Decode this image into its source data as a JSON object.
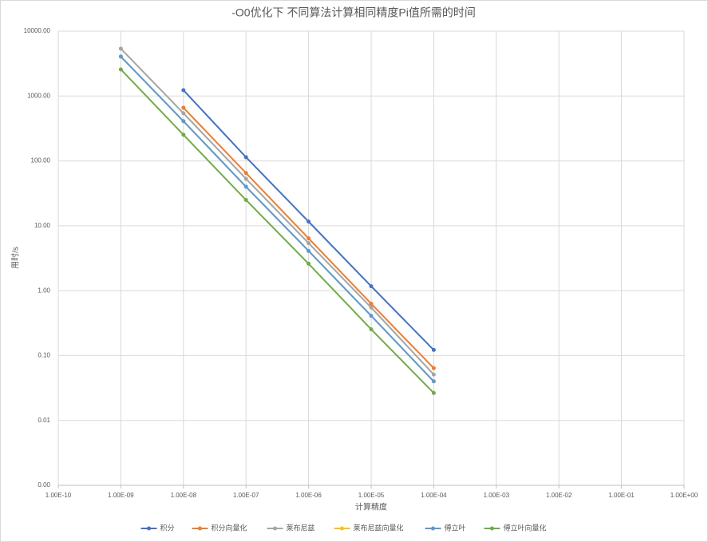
{
  "chart_data": {
    "type": "line",
    "title": "-O0优化下 不同算法计算相同精度Pi值所需的时间",
    "x_label": "计算精度",
    "y_label": "用时/s",
    "x_log": true,
    "y_log": true,
    "grid": true,
    "legend": "bottom",
    "x": [
      1e-09,
      1e-08,
      1e-07,
      1e-06,
      1e-05,
      0.0001
    ],
    "xlim": [
      1e-10,
      1
    ],
    "xticks": [
      {
        "value": 1e-10,
        "label": "1.00E-10"
      },
      {
        "value": 1e-09,
        "label": "1.00E-09"
      },
      {
        "value": 1e-08,
        "label": "1.00E-08"
      },
      {
        "value": 1e-07,
        "label": "1.00E-07"
      },
      {
        "value": 1e-06,
        "label": "1.00E-06"
      },
      {
        "value": 1e-05,
        "label": "1.00E-05"
      },
      {
        "value": 0.0001,
        "label": "1.00E-04"
      },
      {
        "value": 0.001,
        "label": "1.00E-03"
      },
      {
        "value": 0.01,
        "label": "1.00E-02"
      },
      {
        "value": 0.1,
        "label": "1.00E-01"
      },
      {
        "value": 1,
        "label": "1.00E+00"
      }
    ],
    "ylim": [
      0.001,
      10000
    ],
    "yticks": [
      {
        "value": 0.001,
        "label": "0.00"
      },
      {
        "value": 0.01,
        "label": "0.01"
      },
      {
        "value": 0.1,
        "label": "0.10"
      },
      {
        "value": 1,
        "label": "1.00"
      },
      {
        "value": 10,
        "label": "10.00"
      },
      {
        "value": 100,
        "label": "100.00"
      },
      {
        "value": 1000,
        "label": "1000.00"
      },
      {
        "value": 10000,
        "label": "10000.00"
      }
    ],
    "series": [
      {
        "name": "积分",
        "color": "#4472c4",
        "values": [
          null,
          1230,
          114,
          11.6,
          1.17,
          0.122
        ]
      },
      {
        "name": "积分向量化",
        "color": "#ed7d31",
        "values": [
          null,
          660,
          65,
          6.4,
          0.63,
          0.064
        ]
      },
      {
        "name": "莱布尼兹",
        "color": "#a5a5a5",
        "values": [
          5370,
          543,
          53,
          5.4,
          0.55,
          0.051
        ]
      },
      {
        "name": "莱布尼兹向量化",
        "color": "#ffc000",
        "values": [
          4050,
          410,
          40,
          4.1,
          0.41,
          0.04
        ]
      },
      {
        "name": "傅立叶",
        "color": "#5b9bd5",
        "values": [
          4050,
          410,
          40,
          4.1,
          0.41,
          0.04
        ]
      },
      {
        "name": "傅立叶向量化",
        "color": "#70ad47",
        "values": [
          2570,
          253,
          25,
          2.6,
          0.254,
          0.0265
        ]
      }
    ]
  }
}
